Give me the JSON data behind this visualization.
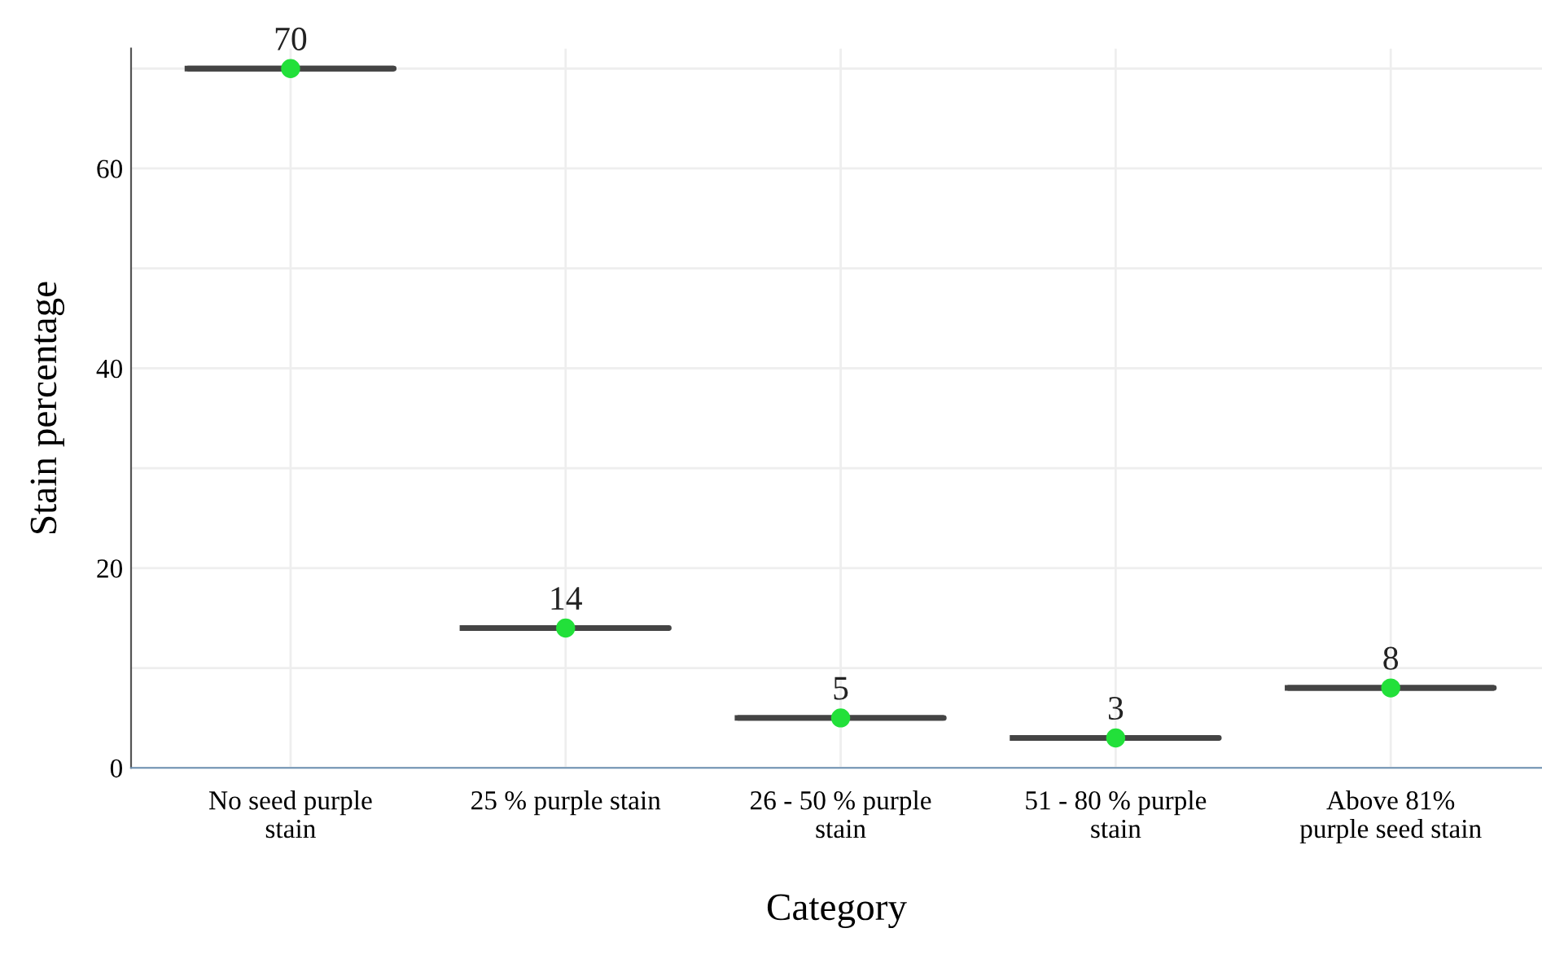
{
  "chart_data": {
    "type": "box",
    "xlabel": "Category",
    "ylabel": "Stain percentage",
    "categories": [
      "No seed purple\nstain",
      "25 % purple stain",
      "26 - 50 % purple\nstain",
      "51 - 80 % purple\nstain",
      "Above 81%\npurple seed stain"
    ],
    "series": [
      {
        "color": "#444444",
        "boxes": [
          {
            "low": 70,
            "q1": 70,
            "median": 70,
            "q3": 70,
            "high": 70
          },
          {
            "low": 14,
            "q1": 14,
            "median": 14,
            "q3": 14,
            "high": 14
          },
          {
            "low": 5,
            "q1": 5,
            "median": 5,
            "q3": 5,
            "high": 5
          },
          {
            "low": 3,
            "q1": 3,
            "median": 3,
            "q3": 3,
            "high": 3
          },
          {
            "low": 8,
            "q1": 8,
            "median": 8,
            "q3": 8,
            "high": 8
          }
        ]
      },
      {
        "type": "scatter",
        "color": "#22e03a",
        "x": [
          "No seed purple\nstain",
          "25 % purple stain",
          "26 - 50 % purple\nstain",
          "51 - 80 % purple\nstain",
          "Above 81%\npurple seed stain"
        ],
        "values": [
          70,
          14,
          5,
          3,
          8
        ]
      }
    ],
    "marker": "circle",
    "ylim": [
      0,
      72
    ],
    "yticks": [
      0,
      {
        "value": 10,
        "label": null
      },
      20,
      {
        "value": 30,
        "label": null
      },
      40,
      {
        "value": 50,
        "label": null
      },
      60,
      {
        "value": 70,
        "label": null
      }
    ],
    "grid": true,
    "data_labels": true
  }
}
